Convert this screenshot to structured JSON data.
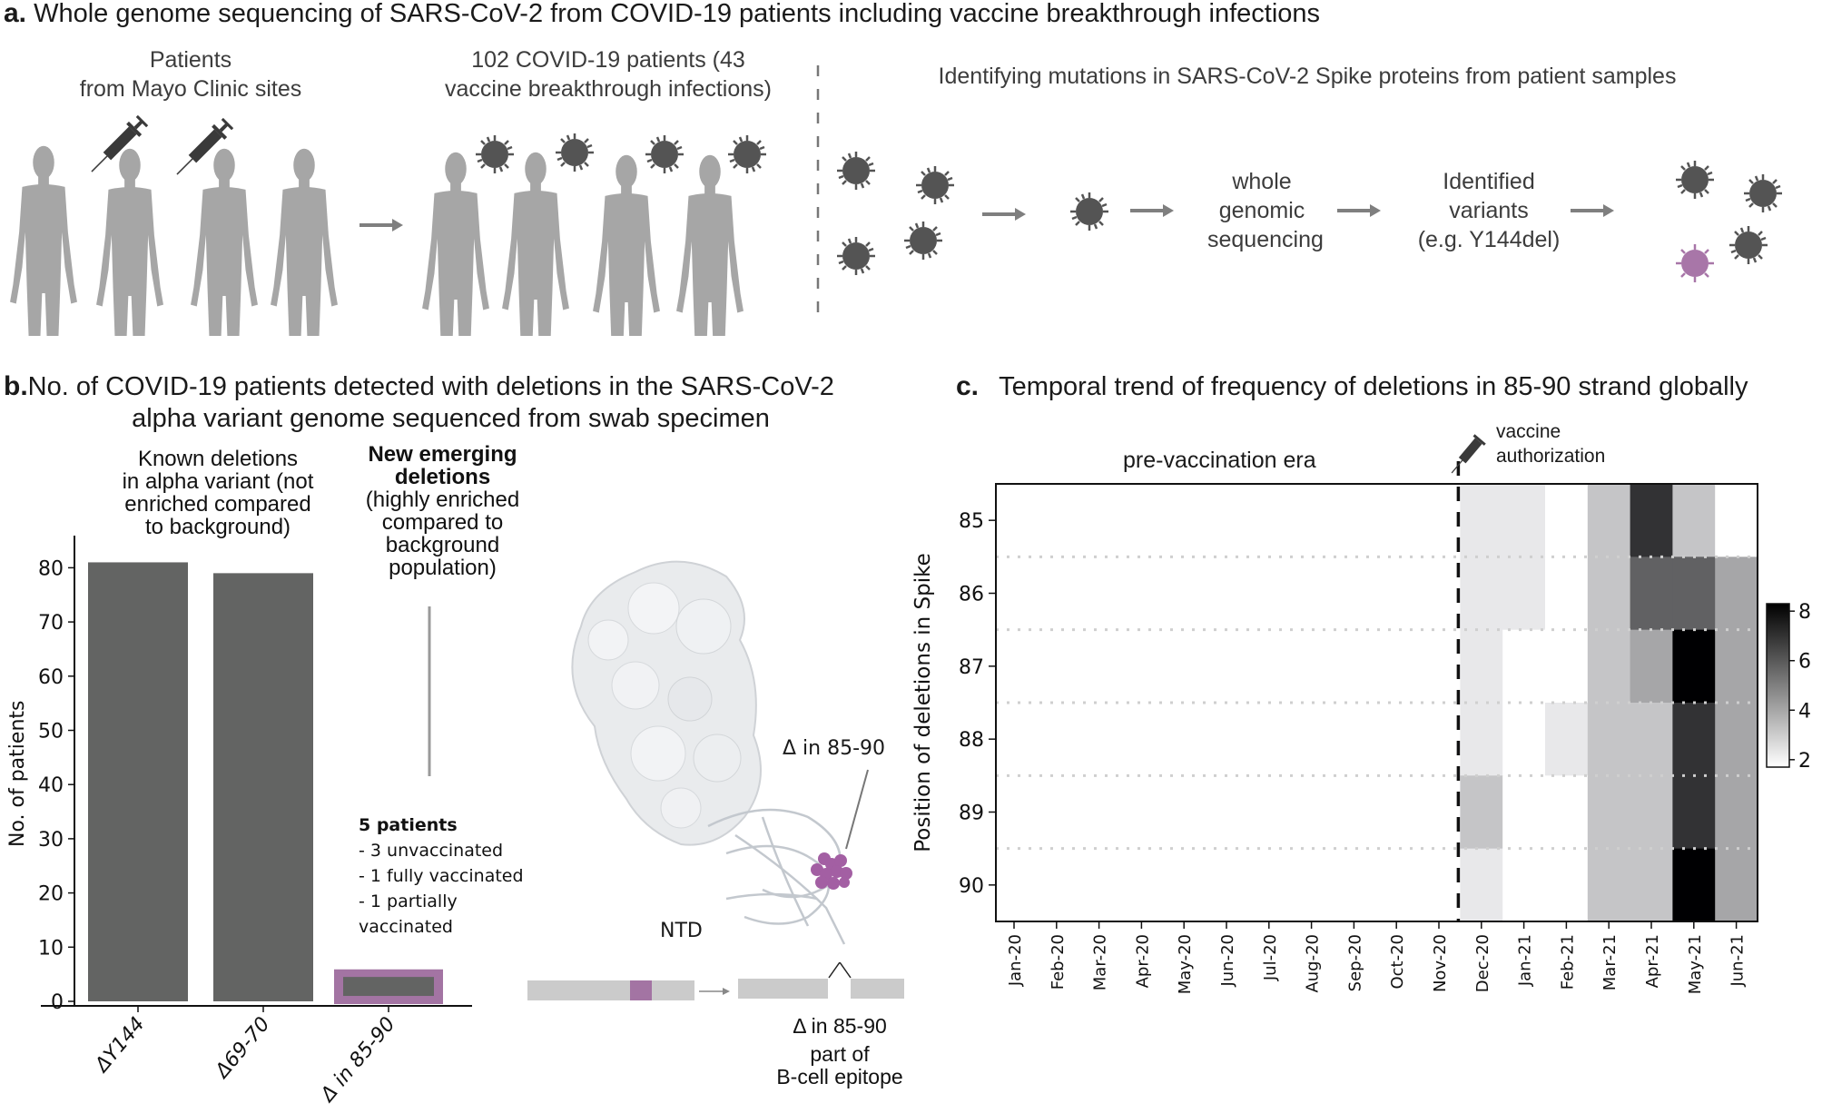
{
  "panel_a": {
    "letter": "a.",
    "title": "Whole genome sequencing of SARS-CoV-2 from COVID-19 patients including vaccine breakthrough infections",
    "step1_label_lines": [
      "Patients",
      "from Mayo Clinic sites"
    ],
    "step2_label_lines": [
      "102 COVID-19 patients (43",
      "vaccine breakthrough infections)"
    ],
    "step3_label": "Identifying mutations in SARS-CoV-2 Spike proteins from patient samples",
    "process_step_sequencing": [
      "whole",
      "genomic",
      "sequencing"
    ],
    "process_step_variants": [
      "Identified",
      "variants",
      "(e.g. Y144del)"
    ],
    "colors": {
      "figure": "#a6a6a6",
      "virus": "#545454",
      "variant_virus": "#a876a8",
      "arrow": "#7f7f7f"
    }
  },
  "panel_b": {
    "letter": "b.",
    "title_lines": [
      "No. of COVID-19 patients detected with deletions in the SARS-CoV-2",
      "alpha variant genome sequenced from swab specimen"
    ],
    "known_caption_lines": [
      "Known deletions",
      "in alpha variant (not",
      "enriched compared",
      "to background)"
    ],
    "new_caption_bold_lines": [
      "New emerging",
      "deletions"
    ],
    "new_caption_lines": [
      "(highly enriched",
      "compared to",
      "background",
      "population)"
    ],
    "patients_note": {
      "heading": "5 patients",
      "lines": [
        "- 3 unvaccinated",
        "- 1 fully vaccinated",
        "- 1 partially",
        "vaccinated"
      ]
    },
    "structure_labels": {
      "deletion": "Δ in 85-90",
      "domain": "NTD"
    },
    "segment_caption_lines": [
      "Δ in 85-90",
      "part of",
      "B-cell epitope"
    ]
  },
  "panel_c": {
    "letter": "c.",
    "title": "Temporal trend of frequency of deletions in 85-90 strand globally",
    "era_label": "pre-vaccination era",
    "vaccine_label_lines": [
      "vaccine",
      "authorization"
    ]
  },
  "chart_data": [
    {
      "type": "bar",
      "title": "No. of COVID-19 patients detected with deletions in the SARS-CoV-2 alpha variant genome sequenced from swab specimen",
      "xlabel": "",
      "ylabel": "No. of patients",
      "categories": [
        "ΔY144",
        "Δ69-70",
        "Δ in 85-90"
      ],
      "values": [
        81,
        79,
        5
      ],
      "highlight": [
        false,
        false,
        true
      ],
      "ylim": [
        0,
        85
      ],
      "yticks": [
        0,
        10,
        20,
        30,
        40,
        50,
        60,
        70,
        80
      ],
      "grid": false,
      "colors": {
        "bar": "#636463",
        "highlight_frame": "#a374a3"
      }
    },
    {
      "type": "heatmap",
      "title": "Temporal trend of frequency of deletions in 85-90 strand globally",
      "xlabel": "",
      "ylabel": "Position of deletions in Spike",
      "x": [
        "Jan-20",
        "Feb-20",
        "Mar-20",
        "Apr-20",
        "May-20",
        "Jun-20",
        "Jul-20",
        "Aug-20",
        "Sep-20",
        "Oct-20",
        "Nov-20",
        "Dec-20",
        "Jan-21",
        "Feb-21",
        "Mar-21",
        "Apr-21",
        "May-21",
        "Jun-21"
      ],
      "y": [
        "85",
        "86",
        "87",
        "88",
        "89",
        "90"
      ],
      "values": [
        [
          null,
          null,
          null,
          null,
          null,
          null,
          null,
          null,
          null,
          null,
          null,
          2.3,
          2.3,
          1.7,
          3.2,
          7.0,
          3.2,
          1.7
        ],
        [
          null,
          null,
          null,
          null,
          null,
          null,
          null,
          null,
          null,
          null,
          null,
          2.3,
          2.3,
          1.7,
          3.2,
          5.8,
          5.8,
          4.0
        ],
        [
          null,
          null,
          null,
          null,
          null,
          null,
          null,
          null,
          null,
          null,
          null,
          2.3,
          1.7,
          1.7,
          3.2,
          4.0,
          8.3,
          4.0
        ],
        [
          null,
          null,
          null,
          null,
          null,
          null,
          null,
          null,
          null,
          null,
          null,
          2.3,
          1.7,
          2.3,
          3.2,
          3.2,
          7.0,
          4.0
        ],
        [
          null,
          null,
          null,
          null,
          null,
          null,
          null,
          null,
          null,
          null,
          null,
          3.2,
          1.7,
          1.7,
          3.2,
          3.2,
          7.0,
          4.0
        ],
        [
          null,
          null,
          null,
          null,
          null,
          null,
          null,
          null,
          null,
          null,
          null,
          2.3,
          1.7,
          1.7,
          3.2,
          3.2,
          8.3,
          4.0
        ]
      ],
      "colorbar": {
        "min": 1.7,
        "max": 8.3,
        "ticks": [
          2,
          4,
          6,
          8
        ],
        "colormap": "Greys"
      },
      "annotations": [
        {
          "text": "pre-vaccination era",
          "span": [
            "Jan-20",
            "Nov-20"
          ]
        },
        {
          "text": "vaccine authorization",
          "marker": "dashed vertical line between Nov-20 and Dec-20"
        }
      ],
      "grid": "dotted horizontal lines between rows"
    }
  ]
}
